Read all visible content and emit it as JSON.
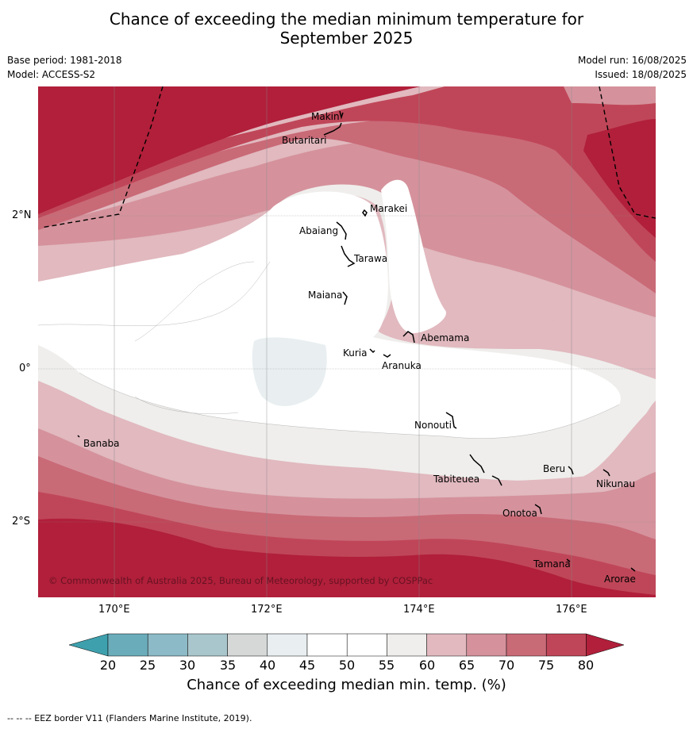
{
  "header": {
    "title_line1": "Chance of exceeding the median minimum temperature for",
    "title_line2": "September 2025",
    "base_period": "Base period: 1981-2018",
    "model": "Model: ACCESS-S2",
    "model_run": "Model run: 16/08/2025",
    "issued": "Issued: 18/08/2025"
  },
  "map": {
    "lat_labels": [
      "2°N",
      "0°",
      "2°S"
    ],
    "lon_labels": [
      "170°E",
      "172°E",
      "174°E",
      "176°E"
    ],
    "places": [
      "Makin",
      "Butaritari",
      "Marakei",
      "Abaiang",
      "Tarawa",
      "Maiana",
      "Abemama",
      "Kuria",
      "Aranuka",
      "Banaba",
      "Nonouti",
      "Beru",
      "Tabiteuea",
      "Nikunau",
      "Onotoa",
      "Tamana",
      "Arorae"
    ],
    "copyright": "© Commonwealth of Australia 2025, Bureau of Meteorology, supported by COSPPac",
    "colors": {
      "lt20": "#3ea0ad",
      "c20": "#6aacba",
      "c25": "#8cbac6",
      "c30": "#a8c6cc",
      "c35": "#d6d8d8",
      "c40": "#e9eff1",
      "c45": "#ffffff",
      "c50": "#ffffff",
      "c55": "#efeeec",
      "c60": "#e1b9bf",
      "c65": "#d5929c",
      "c70": "#c96a77",
      "c75": "#bf4658",
      "c80": "#b11f3a"
    }
  },
  "colorbar": {
    "ticks": [
      "20",
      "25",
      "30",
      "35",
      "40",
      "45",
      "50",
      "55",
      "60",
      "65",
      "70",
      "75",
      "80"
    ],
    "title": "Chance of exceeding median min. temp. (%)"
  },
  "footer": {
    "eez_note": "--  --  -- EEZ border V11 (Flanders Marine Institute, 2019)."
  }
}
